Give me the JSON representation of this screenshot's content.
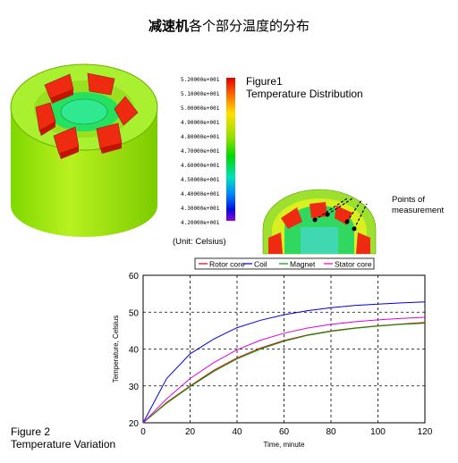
{
  "title": {
    "bold": "减速机",
    "rest": "各个部分温度的分布"
  },
  "figure1": {
    "label": "Figure1",
    "caption": "Temperature Distribution",
    "unit": "(Unit: Celsius)",
    "scale": [
      "5.20000e+001",
      "5.10000e+001",
      "5.00000e+001",
      "4.90000e+001",
      "4.80000e+001",
      "4.70000e+001",
      "4.60000e+001",
      "4.50000e+001",
      "4.40000e+001",
      "4.30000e+001",
      "4.20000e+001"
    ],
    "points_label": [
      "Points of",
      "measurement"
    ]
  },
  "figure2": {
    "label": "Figure 2",
    "caption": "Temperature Variation"
  },
  "chart_data": {
    "type": "line",
    "xlabel": "Time, minute",
    "ylabel": "Temperature, Celsius",
    "xlim": [
      0,
      120
    ],
    "ylim": [
      20,
      60
    ],
    "xticks": [
      0,
      20,
      40,
      60,
      80,
      100,
      120
    ],
    "yticks": [
      20,
      30,
      40,
      50,
      60
    ],
    "grid": true,
    "legend_position": "top",
    "series": [
      {
        "name": "Rotor core",
        "color": "#d80000",
        "x": [
          0,
          10,
          20,
          30,
          40,
          50,
          60,
          70,
          80,
          90,
          100,
          110,
          120
        ],
        "y": [
          20,
          25.5,
          30,
          34.2,
          37.6,
          40.3,
          42.3,
          43.8,
          44.9,
          45.7,
          46.3,
          46.8,
          47.2
        ]
      },
      {
        "name": "Coil",
        "color": "#0000e0",
        "x": [
          0,
          10,
          20,
          30,
          40,
          50,
          60,
          70,
          80,
          90,
          100,
          110,
          120
        ],
        "y": [
          20,
          32,
          38.7,
          42.7,
          45.8,
          47.8,
          49.3,
          50.4,
          51.2,
          51.8,
          52.2,
          52.5,
          52.8
        ]
      },
      {
        "name": "Magnet",
        "color": "#00a000",
        "x": [
          0,
          10,
          20,
          30,
          40,
          50,
          60,
          70,
          80,
          90,
          100,
          110,
          120
        ],
        "y": [
          20,
          25.3,
          29.8,
          33.9,
          37.3,
          40,
          42.1,
          43.7,
          44.8,
          45.6,
          46.2,
          46.7,
          47
        ]
      },
      {
        "name": "Stator core",
        "color": "#e000e0",
        "x": [
          0,
          10,
          20,
          30,
          40,
          50,
          60,
          70,
          80,
          90,
          100,
          110,
          120
        ],
        "y": [
          20,
          26.5,
          32,
          36.3,
          39.8,
          42.4,
          44.3,
          45.7,
          46.7,
          47.4,
          47.9,
          48.3,
          48.6
        ]
      }
    ]
  }
}
